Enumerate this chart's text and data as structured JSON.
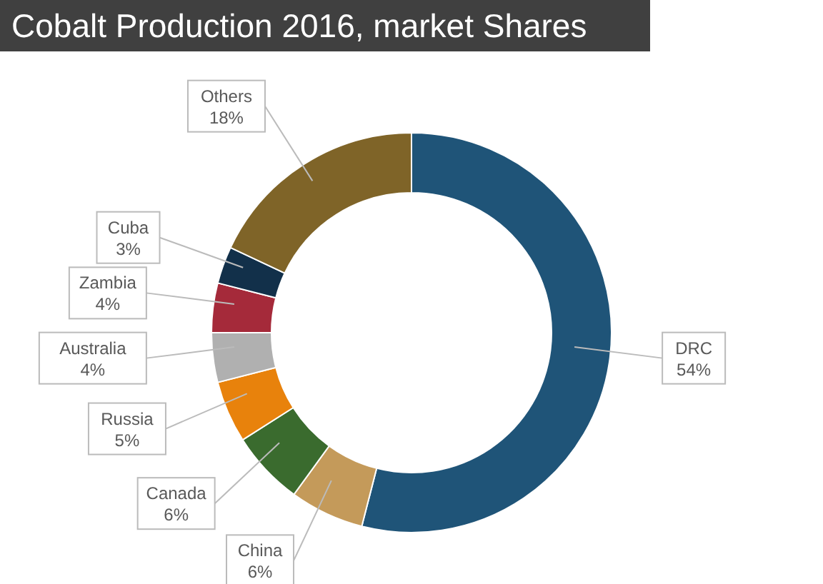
{
  "chart_data": {
    "type": "donut",
    "title": "Cobalt Production 2016, market Shares",
    "categories": [
      "DRC",
      "China",
      "Canada",
      "Russia",
      "Australia",
      "Zambia",
      "Cuba",
      "Others"
    ],
    "values": [
      54,
      6,
      6,
      5,
      4,
      4,
      3,
      18
    ],
    "value_labels": [
      "54%",
      "6%",
      "6%",
      "5%",
      "4%",
      "4%",
      "3%",
      "18%"
    ],
    "colors": [
      "#1f5478",
      "#c49a5a",
      "#3a6b2e",
      "#e8820c",
      "#b0b0b0",
      "#a52a3a",
      "#12304a",
      "#7f6428"
    ],
    "legend": false
  }
}
